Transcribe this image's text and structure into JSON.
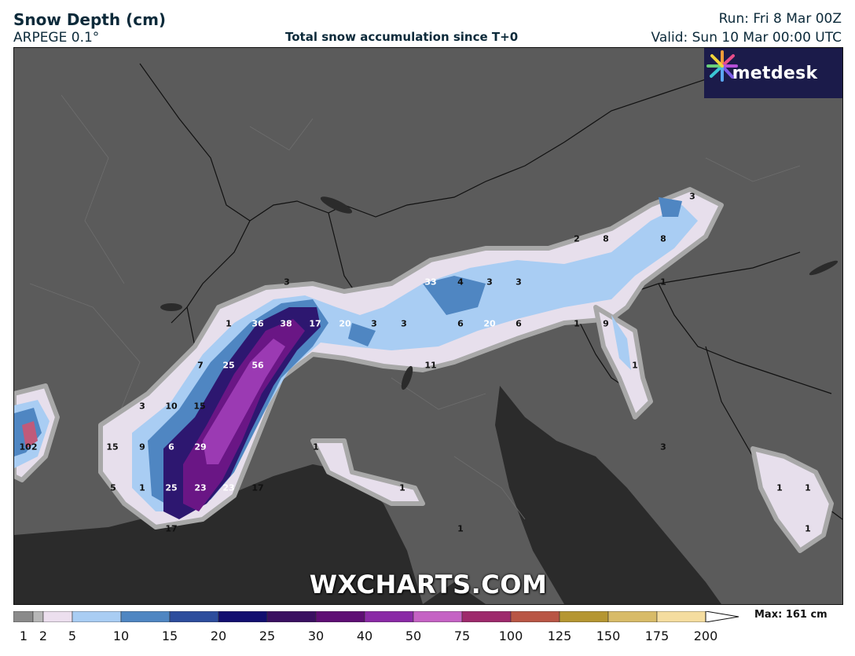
{
  "header": {
    "title": "Snow Depth (cm)",
    "model": "ARPEGE 0.1°",
    "subtitle": "Total snow accumulation since T+0",
    "run": "Run: Fri 8 Mar 00Z",
    "valid": "Valid: Sun 10 Mar 00:00 UTC"
  },
  "logo": {
    "text": "metdesk"
  },
  "watermark": "WXCHARTS.COM",
  "map_values": [
    {
      "text": "102",
      "style": "dark"
    },
    {
      "text": "15",
      "style": "dark"
    },
    {
      "text": "9",
      "style": "dark"
    },
    {
      "text": "6",
      "style": "light"
    },
    {
      "text": "29",
      "style": "light"
    },
    {
      "text": "3",
      "style": "dark"
    },
    {
      "text": "10",
      "style": "dark"
    },
    {
      "text": "15",
      "style": "dark"
    },
    {
      "text": "5",
      "style": "dark"
    },
    {
      "text": "1",
      "style": "dark"
    },
    {
      "text": "25",
      "style": "light"
    },
    {
      "text": "23",
      "style": "light"
    },
    {
      "text": "23",
      "style": "light"
    },
    {
      "text": "17",
      "style": "dark"
    },
    {
      "text": "17",
      "style": "dark"
    },
    {
      "text": "7",
      "style": "dark"
    },
    {
      "text": "25",
      "style": "light"
    },
    {
      "text": "56",
      "style": "light"
    },
    {
      "text": "1",
      "style": "dark"
    },
    {
      "text": "36",
      "style": "light"
    },
    {
      "text": "38",
      "style": "light"
    },
    {
      "text": "17",
      "style": "light"
    },
    {
      "text": "3",
      "style": "dark"
    },
    {
      "text": "20",
      "style": "light"
    },
    {
      "text": "3",
      "style": "dark"
    },
    {
      "text": "3",
      "style": "dark"
    },
    {
      "text": "11",
      "style": "dark"
    },
    {
      "text": "33",
      "style": "light"
    },
    {
      "text": "4",
      "style": "dark"
    },
    {
      "text": "3",
      "style": "dark"
    },
    {
      "text": "3",
      "style": "dark"
    },
    {
      "text": "6",
      "style": "dark"
    },
    {
      "text": "20",
      "style": "light"
    },
    {
      "text": "6",
      "style": "dark"
    },
    {
      "text": "2",
      "style": "dark"
    },
    {
      "text": "8",
      "style": "dark"
    },
    {
      "text": "8",
      "style": "dark"
    },
    {
      "text": "3",
      "style": "dark"
    },
    {
      "text": "1",
      "style": "dark"
    },
    {
      "text": "1",
      "style": "dark"
    },
    {
      "text": "9",
      "style": "dark"
    },
    {
      "text": "1",
      "style": "dark"
    },
    {
      "text": "3",
      "style": "dark"
    },
    {
      "text": "1",
      "style": "dark"
    },
    {
      "text": "1",
      "style": "dark"
    },
    {
      "text": "1",
      "style": "dark"
    },
    {
      "text": "1",
      "style": "dark"
    },
    {
      "text": "1",
      "style": "dark"
    },
    {
      "text": "1",
      "style": "dark"
    }
  ],
  "legend": {
    "ticks": [
      "1",
      "2",
      "5",
      "10",
      "15",
      "20",
      "25",
      "30",
      "40",
      "50",
      "75",
      "100",
      "125",
      "150",
      "175",
      "200"
    ],
    "colors": [
      "#8a8a8a",
      "#b7b7b7",
      "#ecdfee",
      "#a9cdf3",
      "#4f86c2",
      "#2d4d9d",
      "#120f70",
      "#3a1061",
      "#5e0e74",
      "#8a2aa6",
      "#c562c4",
      "#9e2a6c",
      "#b95645",
      "#b59632",
      "#d8bb68",
      "#f5dd9f"
    ],
    "max_label": "Max: 161 cm"
  }
}
